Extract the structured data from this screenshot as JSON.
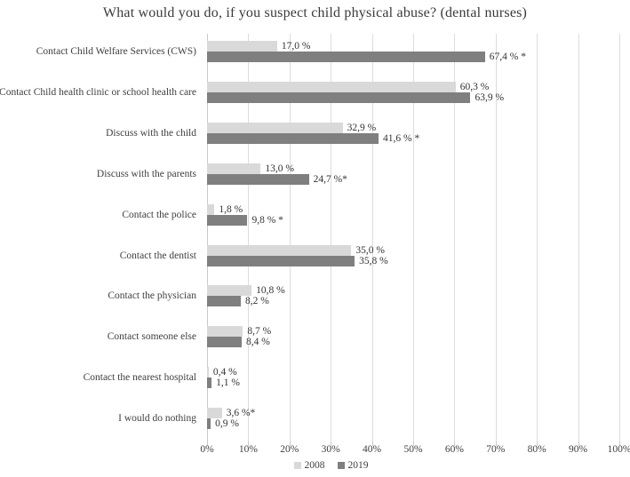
{
  "title": "What would you do, if you suspect child physical abuse? (dental nurses)",
  "chart_data": {
    "type": "bar",
    "orientation": "horizontal",
    "title": "What would you do, if you suspect child physical abuse? (dental nurses)",
    "xlabel": "",
    "ylabel": "",
    "xlim": [
      0,
      100
    ],
    "grid": true,
    "legend_position": "bottom-center",
    "x_ticks": [
      "0%",
      "10%",
      "20%",
      "30%",
      "40%",
      "50%",
      "60%",
      "70%",
      "80%",
      "90%",
      "100%"
    ],
    "categories": [
      "Contact Child Welfare Services (CWS)",
      "Contact Child health clinic or school health care",
      "Discuss with the child",
      "Discuss with the parents",
      "Contact the police",
      "Contact the dentist",
      "Contact the physician",
      "Contact someone else",
      "Contact the nearest hospital",
      "I would do nothing"
    ],
    "series": [
      {
        "name": "2008",
        "color": "#d9d9d9",
        "values": [
          17.0,
          60.3,
          32.9,
          13.0,
          1.8,
          35.0,
          10.8,
          8.7,
          0.4,
          3.6
        ],
        "labels": [
          "17,0 %",
          "60,3 %",
          "32,9 %",
          "13,0 %",
          "1,8 %",
          "35,0 %",
          "10,8 %",
          "8,7 %",
          "0,4 %",
          "3,6 %*"
        ]
      },
      {
        "name": "2019",
        "color": "#7f7f7f",
        "values": [
          67.4,
          63.9,
          41.6,
          24.7,
          9.8,
          35.8,
          8.2,
          8.4,
          1.1,
          0.9
        ],
        "labels": [
          "67,4 % *",
          "63,9 %",
          "41,6 % *",
          "24,7 %*",
          "9,8 % *",
          "35,8 %",
          "8,2 %",
          "8,4 %",
          "1,1 %",
          "0,9 %"
        ]
      }
    ]
  },
  "legend": {
    "items": [
      {
        "label": "2008",
        "color": "#d9d9d9"
      },
      {
        "label": "2019",
        "color": "#7f7f7f"
      }
    ]
  }
}
